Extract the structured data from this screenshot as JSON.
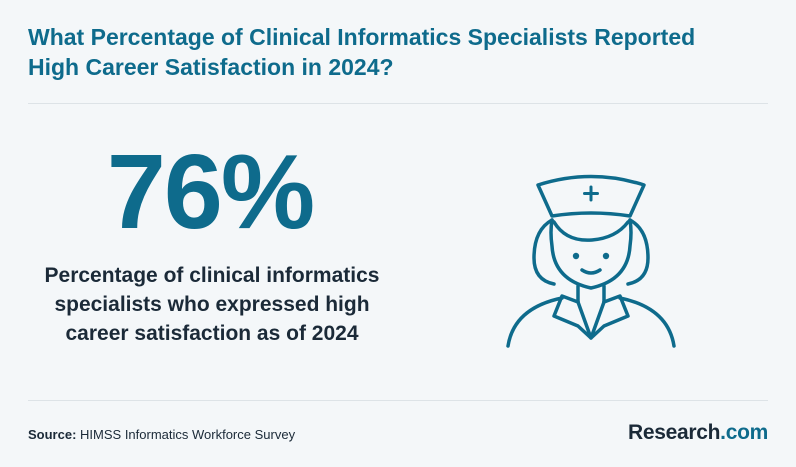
{
  "title": {
    "line1": "What Percentage of Clinical Informatics Specialists Reported",
    "line2": "High Career Satisfaction in 2024?"
  },
  "stat": {
    "value": "76%",
    "caption_line1": "Percentage of clinical informatics",
    "caption_line2": "specialists who expressed high",
    "caption_line3": "career satisfaction as of 2024"
  },
  "illustration": {
    "icon": "nurse-icon",
    "color": "#0e6b8c"
  },
  "footer": {
    "source_label": "Source:",
    "source_text": "HIMSS Informatics Workforce Survey",
    "brand_name": "Research",
    "brand_suffix": ".com"
  },
  "colors": {
    "accent": "#0e6b8c",
    "text": "#1b2a38",
    "background": "#f4f7f9"
  }
}
